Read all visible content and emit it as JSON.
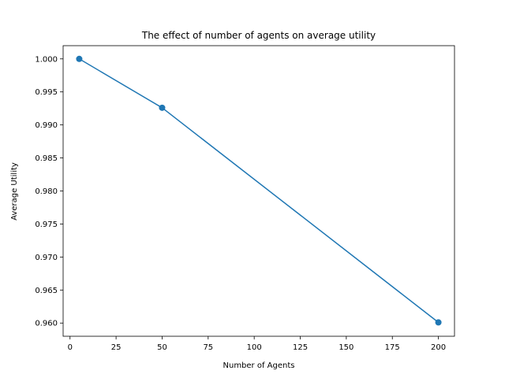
{
  "chart_data": {
    "type": "line",
    "title": "The effect of number of agents on average utility",
    "xlabel": "Number of Agents",
    "ylabel": "Average Utility",
    "xlim": [
      -3.75,
      208.75
    ],
    "ylim": [
      0.958,
      1.002
    ],
    "xticks": [
      0,
      25,
      50,
      75,
      100,
      125,
      150,
      175,
      200
    ],
    "xtick_labels": [
      "0",
      "25",
      "50",
      "75",
      "100",
      "125",
      "150",
      "175",
      "200"
    ],
    "yticks": [
      0.96,
      0.965,
      0.97,
      0.975,
      0.98,
      0.985,
      0.99,
      0.995,
      1.0
    ],
    "ytick_labels": [
      "0.960",
      "0.965",
      "0.970",
      "0.975",
      "0.980",
      "0.985",
      "0.990",
      "0.995",
      "1.000"
    ],
    "grid": false,
    "series": [
      {
        "x": [
          5,
          50,
          200
        ],
        "y": [
          1.0,
          0.9926,
          0.9601
        ],
        "color": "#1f77b4",
        "marker": "circle"
      }
    ]
  }
}
